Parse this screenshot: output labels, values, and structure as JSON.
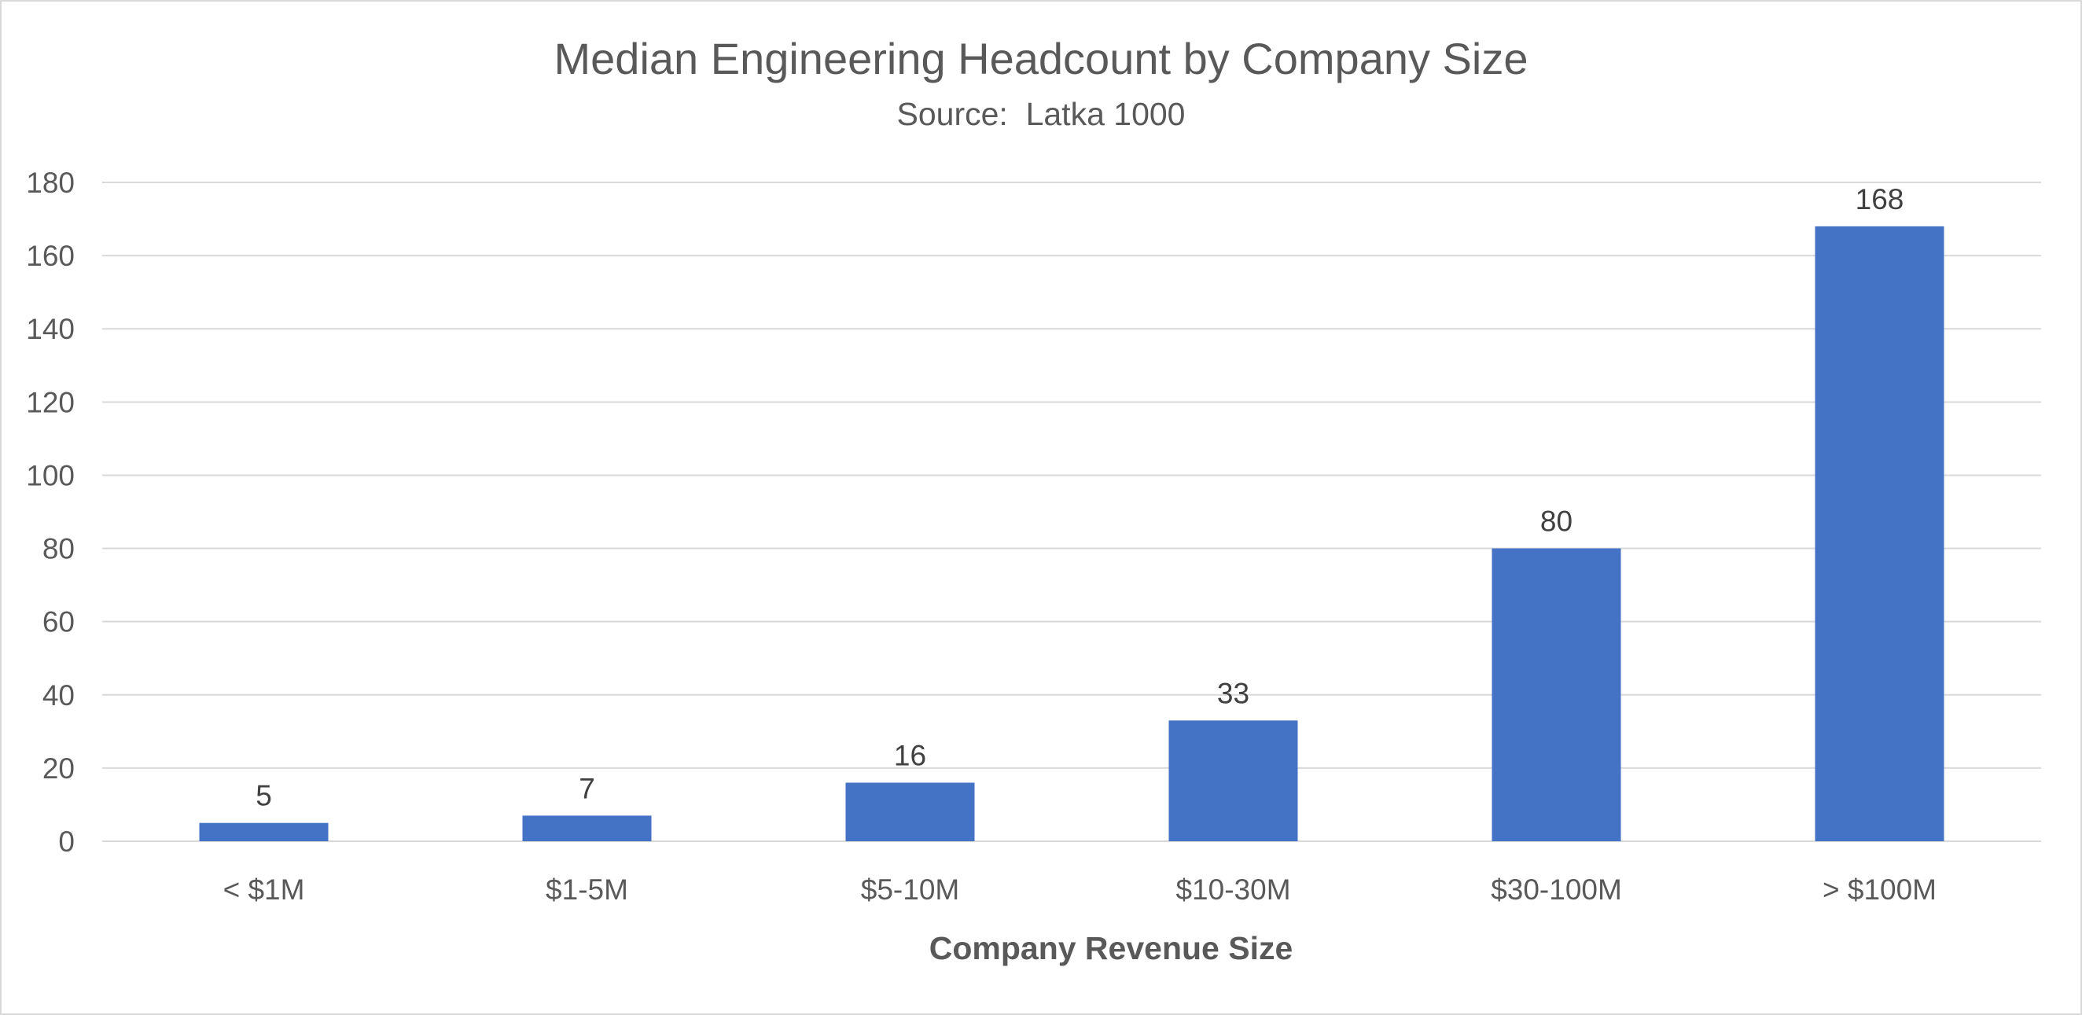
{
  "chart_data": {
    "type": "bar",
    "title": "Median Engineering Headcount by Company Size",
    "subtitle": "Source:  Latka 1000",
    "xlabel": "Company Revenue Size",
    "ylabel": "",
    "categories": [
      "< $1M",
      "$1-5M",
      "$5-10M",
      "$10-30M",
      "$30-100M",
      "> $100M"
    ],
    "values": [
      5,
      7,
      16,
      33,
      80,
      168
    ],
    "data_labels": [
      "5",
      "7",
      "16",
      "33",
      "80",
      "168"
    ],
    "ylim": [
      0,
      180
    ],
    "yticks": [
      0,
      20,
      40,
      60,
      80,
      100,
      120,
      140,
      160,
      180
    ],
    "ytick_labels": [
      "0",
      "20",
      "40",
      "60",
      "80",
      "100",
      "120",
      "140",
      "160",
      "180"
    ],
    "grid": true,
    "legend": "none",
    "colors": {
      "bar": "#4472c4",
      "grid": "#d9d9d9",
      "text": "#595959"
    }
  }
}
